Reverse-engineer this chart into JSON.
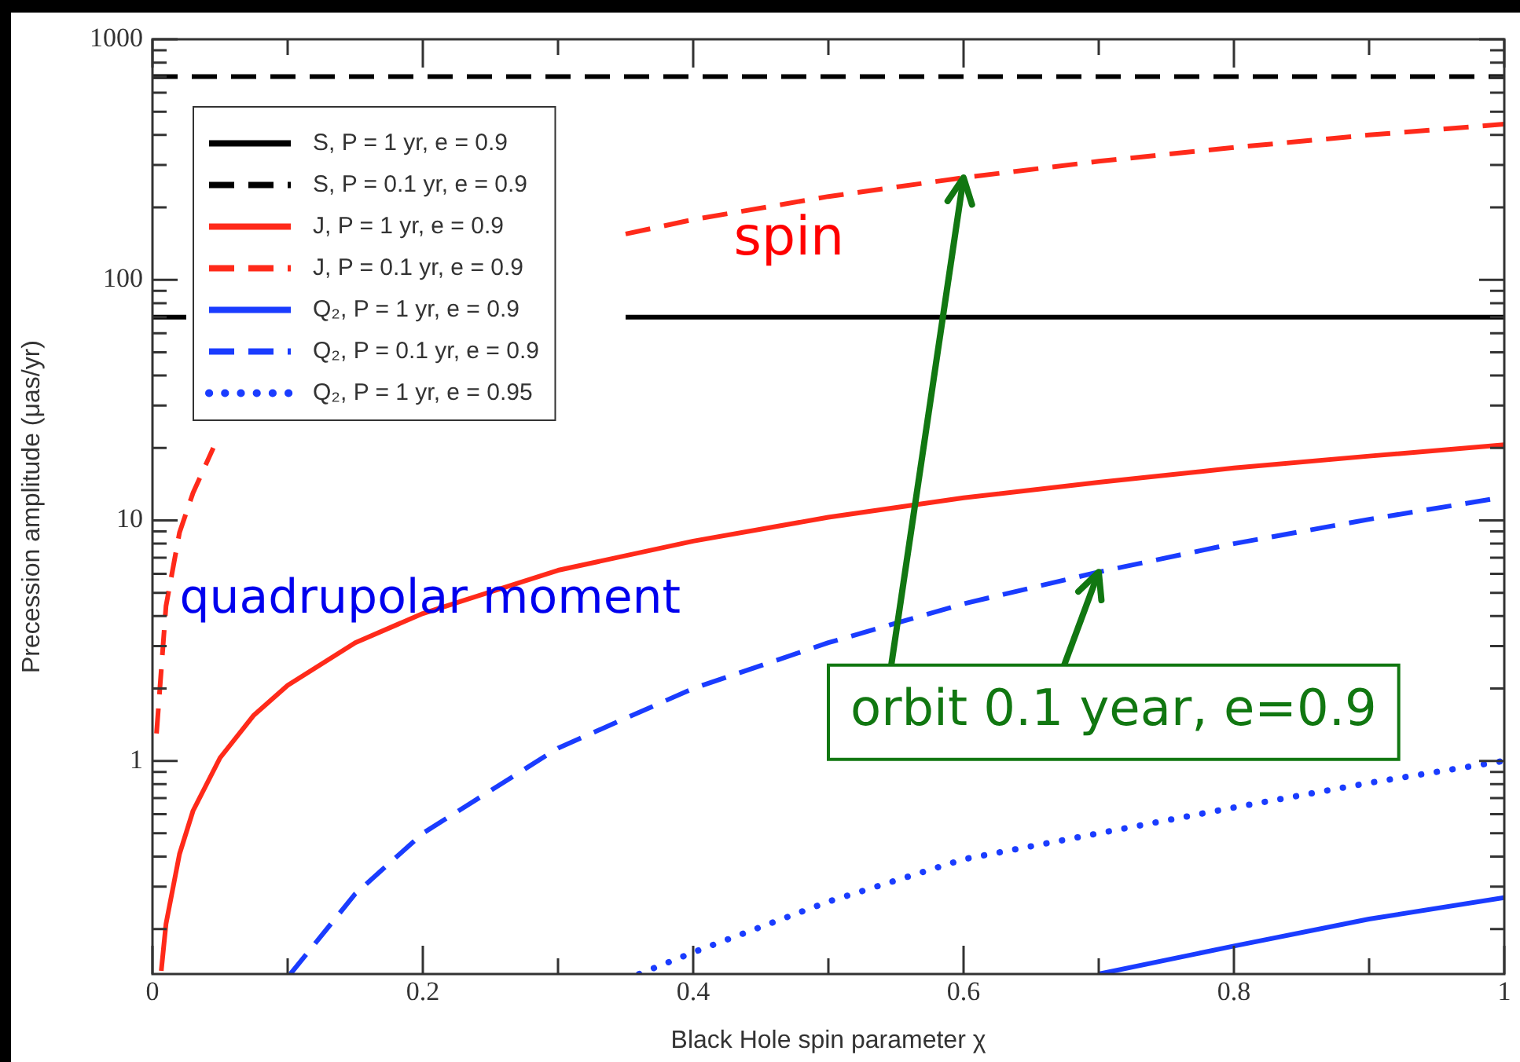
{
  "chart_data": {
    "type": "line",
    "xlabel": "Black Hole spin parameter χ",
    "ylabel": "Precession amplitude (μas/yr)",
    "xlim": [
      0,
      1
    ],
    "xticks": [
      0,
      {
        "value": 0.1,
        "label": null
      },
      0.2,
      {
        "value": 0.3,
        "label": null
      },
      0.4,
      {
        "value": 0.5,
        "label": null
      },
      0.6,
      {
        "value": 0.7,
        "label": null
      },
      0.8,
      {
        "value": 0.9,
        "label": null
      },
      1
    ],
    "ylim": [
      0.13,
      1000
    ],
    "log": "y",
    "yticks": [
      {
        "value": 0.2,
        "label": null
      },
      {
        "value": 0.3,
        "label": null
      },
      {
        "value": 0.4,
        "label": null
      },
      {
        "value": 0.5,
        "label": null
      },
      {
        "value": 0.6,
        "label": null
      },
      {
        "value": 0.7,
        "label": null
      },
      {
        "value": 0.8,
        "label": null
      },
      {
        "value": 0.9,
        "label": null
      },
      1,
      {
        "value": 2,
        "label": null
      },
      {
        "value": 3,
        "label": null
      },
      {
        "value": 4,
        "label": null
      },
      {
        "value": 5,
        "label": null
      },
      {
        "value": 6,
        "label": null
      },
      {
        "value": 7,
        "label": null
      },
      {
        "value": 8,
        "label": null
      },
      {
        "value": 9,
        "label": null
      },
      10,
      {
        "value": 20,
        "label": null
      },
      {
        "value": 30,
        "label": null
      },
      {
        "value": 40,
        "label": null
      },
      {
        "value": 50,
        "label": null
      },
      {
        "value": 60,
        "label": null
      },
      {
        "value": 70,
        "label": null
      },
      {
        "value": 80,
        "label": null
      },
      {
        "value": 90,
        "label": null
      },
      100,
      {
        "value": 200,
        "label": null
      },
      {
        "value": 300,
        "label": null
      },
      {
        "value": 400,
        "label": null
      },
      {
        "value": 500,
        "label": null
      },
      {
        "value": 600,
        "label": null
      },
      {
        "value": 700,
        "label": null
      },
      {
        "value": 800,
        "label": null
      },
      {
        "value": 900,
        "label": null
      },
      1000
    ],
    "grid": false,
    "legend": "top left",
    "marker": "none",
    "series": [
      {
        "name": "S, P = 1 yr, e = 0.9",
        "color": "#000000",
        "line_style": "solid",
        "x": [
          0,
          0.025,
          0.2,
          0.35,
          1
        ],
        "values": [
          70,
          70,
          null,
          70,
          70
        ]
      },
      {
        "name": "S, P = 0.1 yr, e = 0.9",
        "color": "#000000",
        "line_style": "dashed",
        "x": [
          0,
          1
        ],
        "values": [
          700,
          700
        ]
      },
      {
        "name": "J, P = 1 yr, e = 0.9",
        "color": "#ff2a1a",
        "line_style": "solid",
        "x": [
          0.0065,
          0.01,
          0.02,
          0.03,
          0.05,
          0.075,
          0.1,
          0.15,
          0.2,
          0.3,
          0.4,
          0.5,
          0.6,
          0.7,
          0.8,
          0.9,
          1
        ],
        "values": [
          0.134,
          0.21,
          0.41,
          0.62,
          1.03,
          1.55,
          2.06,
          3.1,
          4.1,
          6.2,
          8.2,
          10.3,
          12.4,
          14.4,
          16.5,
          18.5,
          20.6
        ]
      },
      {
        "name": "J, P = 0.1 yr, e = 0.9",
        "color": "#ff2a1a",
        "line_style": "dashed",
        "x": [
          0.003,
          0.01,
          0.02,
          0.03,
          0.045,
          0.2,
          0.35,
          0.4,
          0.5,
          0.6,
          0.7,
          0.8,
          0.9,
          1
        ],
        "values": [
          1.3,
          4.4,
          8.9,
          13,
          20,
          null,
          155,
          178,
          222,
          266,
          311,
          355,
          400,
          444
        ]
      },
      {
        "name": "Q₂, P = 1 yr, e = 0.9",
        "color": "#1a3cff",
        "line_style": "solid",
        "x": [
          0.7,
          0.8,
          0.9,
          1
        ],
        "values": [
          0.13,
          0.17,
          0.22,
          0.27
        ]
      },
      {
        "name": "Q₂, P = 0.1 yr, e = 0.9",
        "color": "#1a3cff",
        "line_style": "dashed",
        "x": [
          0.102,
          0.15,
          0.2,
          0.3,
          0.4,
          0.5,
          0.6,
          0.7,
          0.8,
          0.9,
          1
        ],
        "values": [
          0.13,
          0.28,
          0.5,
          1.13,
          2.0,
          3.1,
          4.5,
          6.1,
          8.0,
          10.1,
          12.5
        ]
      },
      {
        "name": "Q₂, P = 1 yr, e = 0.95",
        "color": "#1a3cff",
        "line_style": "dotted",
        "x": [
          0.36,
          0.4,
          0.5,
          0.6,
          0.7,
          0.8,
          0.9,
          1
        ],
        "values": [
          0.13,
          0.16,
          0.26,
          0.39,
          0.5,
          0.64,
          0.81,
          1.0
        ]
      }
    ],
    "annotations": [
      "spin",
      "quadrupolar moment",
      {
        "text": "orbit 0.1 year, e=0.9",
        "x": 0.6,
        "y": 266
      }
    ]
  }
}
